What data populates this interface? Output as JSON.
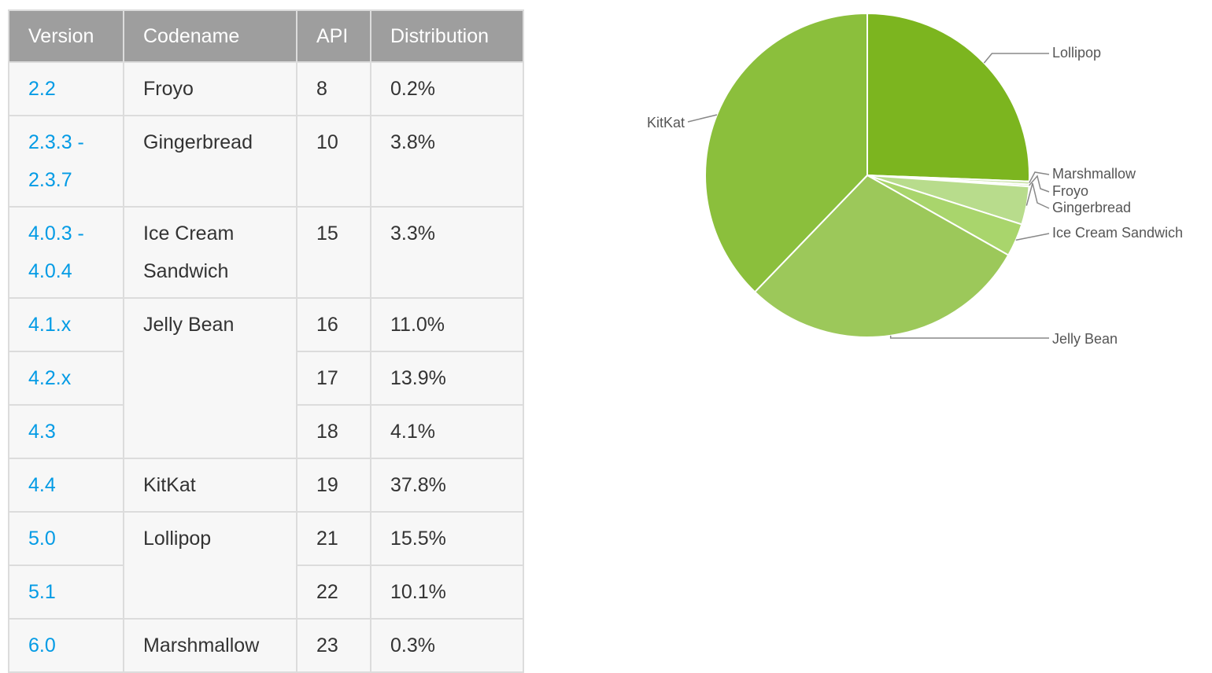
{
  "table": {
    "headers": [
      "Version",
      "Codename",
      "API",
      "Distribution"
    ],
    "rows": [
      {
        "version": [
          "2.2"
        ],
        "codename": [
          "Froyo"
        ],
        "codename_rowspan": 1,
        "api": "8",
        "distribution": "0.2%"
      },
      {
        "version": [
          "2.3.3 -",
          "2.3.7"
        ],
        "codename": [
          "Gingerbread"
        ],
        "codename_rowspan": 1,
        "api": "10",
        "distribution": "3.8%"
      },
      {
        "version": [
          "4.0.3 -",
          "4.0.4"
        ],
        "codename": [
          "Ice Cream",
          "Sandwich"
        ],
        "codename_rowspan": 1,
        "api": "15",
        "distribution": "3.3%"
      },
      {
        "version": [
          "4.1.x"
        ],
        "codename": [
          "Jelly Bean"
        ],
        "codename_rowspan": 3,
        "api": "16",
        "distribution": "11.0%"
      },
      {
        "version": [
          "4.2.x"
        ],
        "codename": null,
        "codename_rowspan": 0,
        "api": "17",
        "distribution": "13.9%"
      },
      {
        "version": [
          "4.3"
        ],
        "codename": null,
        "codename_rowspan": 0,
        "api": "18",
        "distribution": "4.1%"
      },
      {
        "version": [
          "4.4"
        ],
        "codename": [
          "KitKat"
        ],
        "codename_rowspan": 1,
        "api": "19",
        "distribution": "37.8%"
      },
      {
        "version": [
          "5.0"
        ],
        "codename": [
          "Lollipop"
        ],
        "codename_rowspan": 2,
        "api": "21",
        "distribution": "15.5%"
      },
      {
        "version": [
          "5.1"
        ],
        "codename": null,
        "codename_rowspan": 0,
        "api": "22",
        "distribution": "10.1%"
      },
      {
        "version": [
          "6.0"
        ],
        "codename": [
          "Marshmallow"
        ],
        "codename_rowspan": 1,
        "api": "23",
        "distribution": "0.3%"
      }
    ]
  },
  "chart_data": {
    "type": "pie",
    "title": "",
    "slices": [
      {
        "label": "Lollipop",
        "value": 25.6,
        "color": "#7cb51f"
      },
      {
        "label": "Marshmallow",
        "value": 0.3,
        "color": "#c8e2a5"
      },
      {
        "label": "Froyo",
        "value": 0.2,
        "color": "#cfe6b0"
      },
      {
        "label": "Gingerbread",
        "value": 3.8,
        "color": "#b8dc8c"
      },
      {
        "label": "Ice Cream Sandwich",
        "value": 3.3,
        "color": "#a9d56c"
      },
      {
        "label": "Jelly Bean",
        "value": 29.0,
        "color": "#9cc85a"
      },
      {
        "label": "KitKat",
        "value": 37.8,
        "color": "#8bbf3c"
      }
    ],
    "start": "12 o'clock",
    "direction": "clockwise",
    "legend": "none"
  },
  "colors": {
    "header_bg": "#9e9e9e",
    "header_text": "#ffffff",
    "link_blue": "#039be5",
    "cell_bg": "#f7f7f7",
    "border": "#dcdcdc"
  }
}
